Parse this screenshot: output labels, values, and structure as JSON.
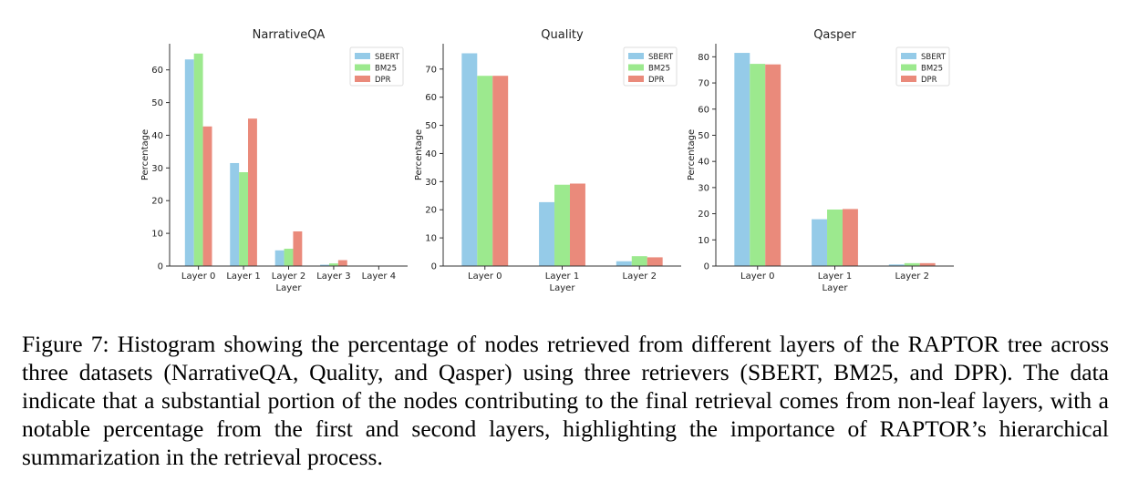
{
  "caption": "Figure 7: Histogram showing the percentage of nodes retrieved from different layers of the RAPTOR tree across three datasets (NarrativeQA, Quality, and Qasper) using three retrievers (SBERT, BM25, and DPR). The data indicate that a substantial portion of the nodes contributing to the final retrieval comes from non-leaf layers, with a notable percentage from the first and second layers, highlighting the importance of RAPTOR’s hierarchical summarization in the retrieval process.",
  "colors": {
    "SBERT": "#95cbe8",
    "BM25": "#9ce98e",
    "DPR": "#ea8a7b"
  },
  "chart_data": [
    {
      "type": "bar",
      "title": "NarrativeQA",
      "xlabel": "Layer",
      "ylabel": "Percentage",
      "categories": [
        "Layer 0",
        "Layer 1",
        "Layer 2",
        "Layer 3",
        "Layer 4"
      ],
      "ylim": [
        0,
        68
      ],
      "yticks": [
        0,
        10,
        20,
        30,
        40,
        50,
        60
      ],
      "legend_position": "top-right",
      "series": [
        {
          "name": "SBERT",
          "values": [
            63.2,
            31.5,
            4.8,
            0.4,
            0.1
          ]
        },
        {
          "name": "BM25",
          "values": [
            65.0,
            28.7,
            5.3,
            0.8,
            0.1
          ]
        },
        {
          "name": "DPR",
          "values": [
            42.7,
            45.1,
            10.6,
            1.8,
            0.0
          ]
        }
      ]
    },
    {
      "type": "bar",
      "title": "Quality",
      "xlabel": "Layer",
      "ylabel": "Percentage",
      "categories": [
        "Layer 0",
        "Layer 1",
        "Layer 2"
      ],
      "ylim": [
        0,
        79
      ],
      "yticks": [
        0,
        10,
        20,
        30,
        40,
        50,
        60,
        70
      ],
      "legend_position": "top-right",
      "series": [
        {
          "name": "SBERT",
          "values": [
            75.6,
            22.7,
            1.7
          ]
        },
        {
          "name": "BM25",
          "values": [
            67.6,
            28.9,
            3.5
          ]
        },
        {
          "name": "DPR",
          "values": [
            67.6,
            29.3,
            3.1
          ]
        }
      ]
    },
    {
      "type": "bar",
      "title": "Qasper",
      "xlabel": "Layer",
      "ylabel": "Percentage",
      "categories": [
        "Layer 0",
        "Layer 1",
        "Layer 2"
      ],
      "ylim": [
        0,
        85
      ],
      "yticks": [
        0,
        10,
        20,
        30,
        40,
        50,
        60,
        70,
        80
      ],
      "legend_position": "top-right",
      "series": [
        {
          "name": "SBERT",
          "values": [
            81.5,
            17.9,
            0.6
          ]
        },
        {
          "name": "BM25",
          "values": [
            77.3,
            21.6,
            1.1
          ]
        },
        {
          "name": "DPR",
          "values": [
            77.1,
            21.8,
            1.1
          ]
        }
      ]
    }
  ]
}
